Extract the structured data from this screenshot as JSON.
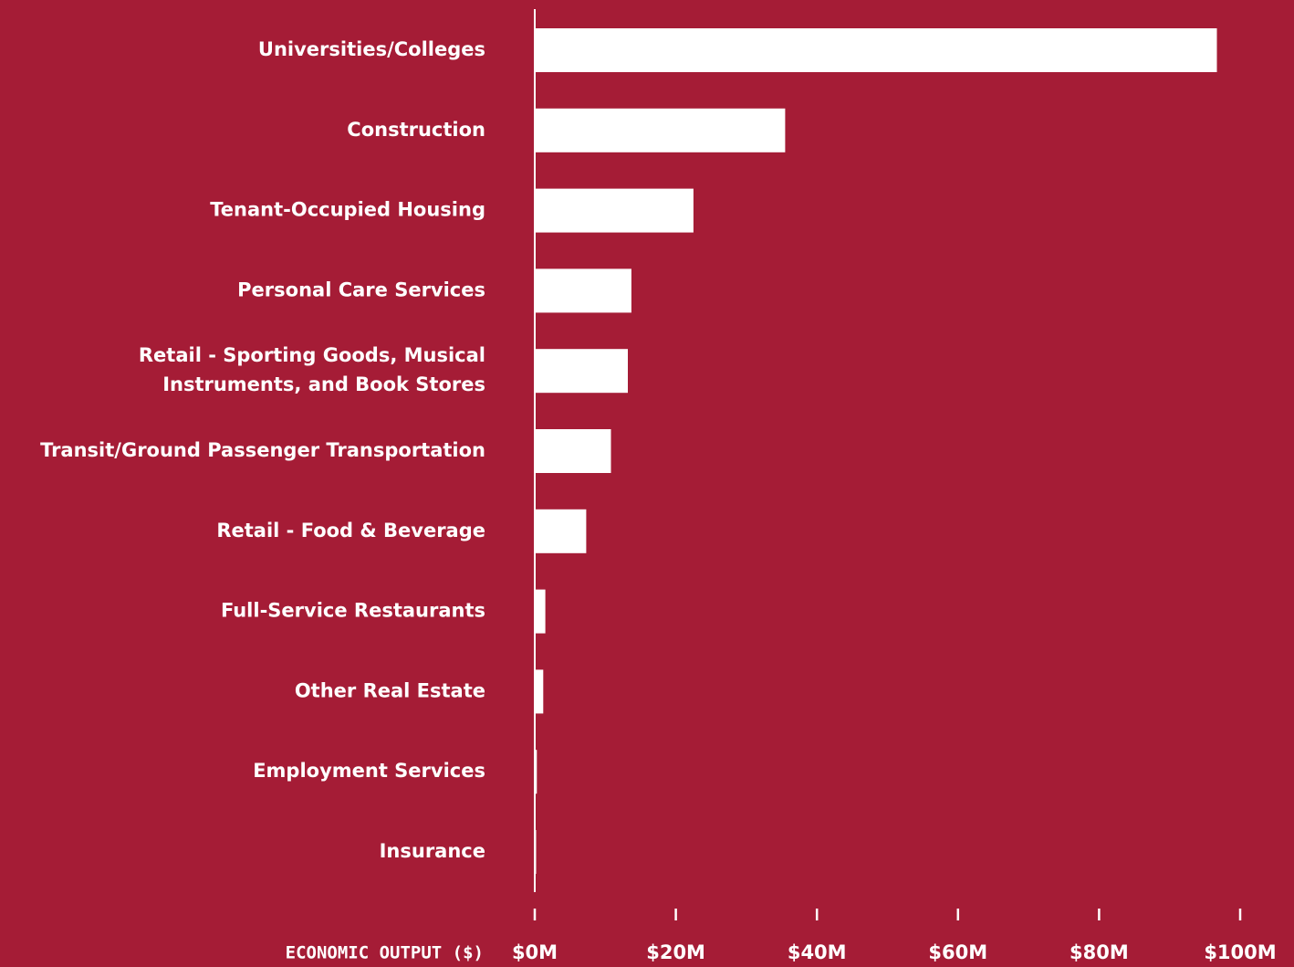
{
  "colors": {
    "background": "#A51C36",
    "bar": "#FFFFFF",
    "text": "#FFFFFF",
    "axis": "#FFFFFF"
  },
  "chart_data": {
    "type": "bar",
    "orientation": "horizontal",
    "categories": [
      [
        "Universities/Colleges"
      ],
      [
        "Construction"
      ],
      [
        "Tenant-Occupied Housing"
      ],
      [
        "Personal Care Services"
      ],
      [
        "Retail - Sporting Goods, Musical",
        "Instruments, and Book Stores"
      ],
      [
        "Transit/Ground Passenger Transportation"
      ],
      [
        "Retail - Food & Beverage"
      ],
      [
        "Full-Service Restaurants"
      ],
      [
        "Other Real Estate"
      ],
      [
        "Employment Services"
      ],
      [
        "Insurance"
      ]
    ],
    "values": [
      96.7,
      35.5,
      22.5,
      13.7,
      13.2,
      10.8,
      7.3,
      1.5,
      1.2,
      0.3,
      0.2
    ],
    "unit": "$M",
    "xlabel": "ECONOMIC OUTPUT ($)",
    "ylabel": "",
    "xlim": [
      0,
      100
    ],
    "xticks": [
      0,
      20,
      40,
      60,
      80,
      100
    ],
    "xtick_labels": [
      "$0M",
      "$20M",
      "$40M",
      "$60M",
      "$80M",
      "$100M"
    ],
    "grid": false,
    "legend": "none"
  }
}
